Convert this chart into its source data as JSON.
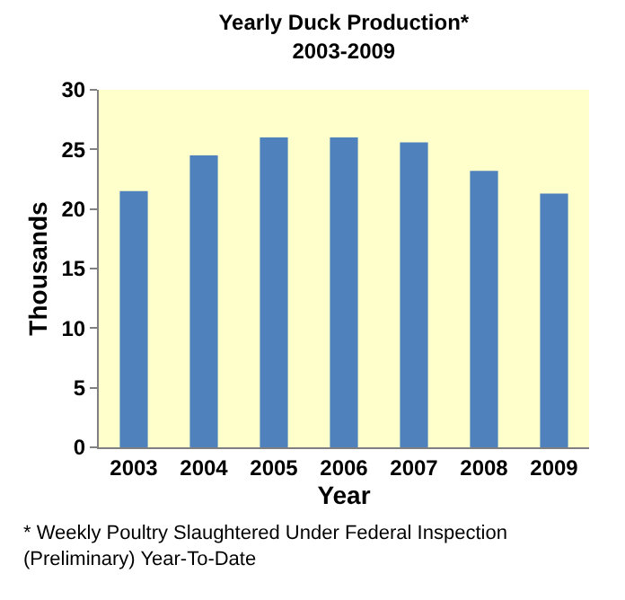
{
  "chart_data": {
    "type": "bar",
    "title": "Yearly Duck Production*\n2003-2009",
    "xlabel": "Year",
    "ylabel": "Thousands",
    "categories": [
      "2003",
      "2004",
      "2005",
      "2006",
      "2007",
      "2008",
      "2009"
    ],
    "values": [
      21.5,
      24.5,
      26.0,
      26.0,
      25.6,
      23.2,
      21.3
    ],
    "color": "#4f81bd",
    "ylim": [
      0,
      30
    ],
    "yticks": [
      0,
      5,
      10,
      15,
      20,
      25,
      30
    ],
    "grid": false,
    "legend": false,
    "annotations": [
      "* Weekly Poultry Slaughtered Under Federal Inspection\n(Preliminary) Year-To-Date"
    ]
  }
}
